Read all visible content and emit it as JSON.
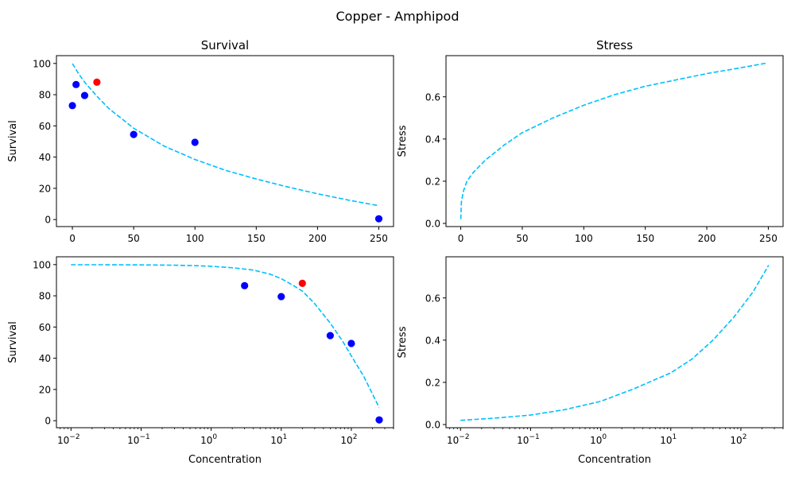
{
  "figure": {
    "suptitle": "Copper - Amphipod"
  },
  "colors": {
    "curve": "#00bfff",
    "point": "#0000ff",
    "highlight": "#ff0000"
  },
  "chart_data": [
    {
      "id": "survival-linear",
      "type": "scatter",
      "title": "Survival",
      "xlabel": "",
      "ylabel": "Survival",
      "xscale": "linear",
      "xlim": [
        -13,
        262
      ],
      "ylim": [
        -4.5,
        105
      ],
      "xticks": [
        0,
        50,
        100,
        150,
        200,
        250
      ],
      "xtick_labels": [
        "0",
        "50",
        "100",
        "150",
        "200",
        "250"
      ],
      "yticks": [
        0,
        20,
        40,
        60,
        80,
        100
      ],
      "ytick_labels": [
        "0",
        "20",
        "40",
        "60",
        "80",
        "100"
      ],
      "grid": false,
      "series": [
        {
          "kind": "points",
          "color": "blue",
          "x": [
            0,
            3,
            10,
            50,
            100,
            250
          ],
          "y": [
            73,
            86.5,
            79.5,
            54.5,
            49.5,
            0.5
          ]
        },
        {
          "kind": "points",
          "color": "red",
          "x": [
            20
          ],
          "y": [
            88
          ]
        },
        {
          "kind": "curve",
          "style": "dashed",
          "x": [
            0.01,
            5,
            10,
            20,
            30,
            50,
            75,
            100,
            125,
            150,
            175,
            200,
            225,
            249
          ],
          "y": [
            99.9,
            93.5,
            88.0,
            79.0,
            71.0,
            58.5,
            47.0,
            38.5,
            31.5,
            26.0,
            21.0,
            16.5,
            12.5,
            9.0
          ]
        }
      ]
    },
    {
      "id": "stress-linear",
      "type": "line",
      "title": "Stress",
      "xlabel": "",
      "ylabel": "Stress",
      "xscale": "linear",
      "xlim": [
        -12,
        262
      ],
      "ylim": [
        -0.015,
        0.795
      ],
      "xticks": [
        0,
        50,
        100,
        150,
        200,
        250
      ],
      "xtick_labels": [
        "0",
        "50",
        "100",
        "150",
        "200",
        "250"
      ],
      "yticks": [
        0,
        0.2,
        0.4,
        0.6
      ],
      "ytick_labels": [
        "0.0",
        "0.2",
        "0.4",
        "0.6"
      ],
      "grid": false,
      "series": [
        {
          "kind": "curve",
          "style": "dashed",
          "x": [
            0.01,
            0.5,
            2,
            5,
            10,
            20,
            35,
            50,
            75,
            100,
            125,
            150,
            175,
            200,
            225,
            249
          ],
          "y": [
            0.02,
            0.1,
            0.15,
            0.2,
            0.24,
            0.3,
            0.37,
            0.43,
            0.5,
            0.56,
            0.61,
            0.65,
            0.68,
            0.71,
            0.735,
            0.76
          ]
        }
      ]
    },
    {
      "id": "survival-log",
      "type": "scatter",
      "title": "",
      "xlabel": "Concentration",
      "ylabel": "Survival",
      "xscale": "log",
      "xlim": [
        0.0062,
        400
      ],
      "ylim": [
        -4.5,
        105
      ],
      "xticks": [
        0.01,
        0.1,
        1,
        10,
        100
      ],
      "xtick_labels": [
        [
          "10",
          "−2"
        ],
        [
          "10",
          "−1"
        ],
        [
          "10",
          "0"
        ],
        [
          "10",
          "1"
        ],
        [
          "10",
          "2"
        ]
      ],
      "yticks": [
        0,
        20,
        40,
        60,
        80,
        100
      ],
      "ytick_labels": [
        "0",
        "20",
        "40",
        "60",
        "80",
        "100"
      ],
      "grid": false,
      "series": [
        {
          "kind": "points",
          "color": "blue",
          "x": [
            3,
            10,
            50,
            100,
            250
          ],
          "y": [
            86.5,
            79.5,
            54.5,
            49.5,
            0.5
          ]
        },
        {
          "kind": "points",
          "color": "red",
          "x": [
            20
          ],
          "y": [
            88
          ]
        },
        {
          "kind": "curve",
          "style": "dashed",
          "x": [
            0.01,
            0.03,
            0.1,
            0.3,
            0.6,
            1,
            2,
            4,
            7,
            10,
            15,
            20,
            30,
            50,
            75,
            100,
            150,
            249
          ],
          "y": [
            99.9,
            99.9,
            99.8,
            99.6,
            99.3,
            98.9,
            98.0,
            96.5,
            93.8,
            91.0,
            86.5,
            83.0,
            75.0,
            62.5,
            51.0,
            41.5,
            28.5,
            8.5
          ]
        }
      ]
    },
    {
      "id": "stress-log",
      "type": "line",
      "title": "",
      "xlabel": "Concentration",
      "ylabel": "Stress",
      "xscale": "log",
      "xlim": [
        0.0062,
        400
      ],
      "ylim": [
        -0.015,
        0.795
      ],
      "xticks": [
        0.01,
        0.1,
        1,
        10,
        100
      ],
      "xtick_labels": [
        [
          "10",
          "−2"
        ],
        [
          "10",
          "−1"
        ],
        [
          "10",
          "0"
        ],
        [
          "10",
          "1"
        ],
        [
          "10",
          "2"
        ]
      ],
      "yticks": [
        0,
        0.2,
        0.4,
        0.6
      ],
      "ytick_labels": [
        "0.0",
        "0.2",
        "0.4",
        "0.6"
      ],
      "grid": false,
      "series": [
        {
          "kind": "curve",
          "style": "dashed",
          "x": [
            0.01,
            0.03,
            0.1,
            0.3,
            1,
            3,
            10,
            20,
            40,
            80,
            150,
            249
          ],
          "y": [
            0.02,
            0.03,
            0.045,
            0.07,
            0.11,
            0.17,
            0.245,
            0.31,
            0.4,
            0.51,
            0.63,
            0.755
          ]
        }
      ]
    }
  ]
}
